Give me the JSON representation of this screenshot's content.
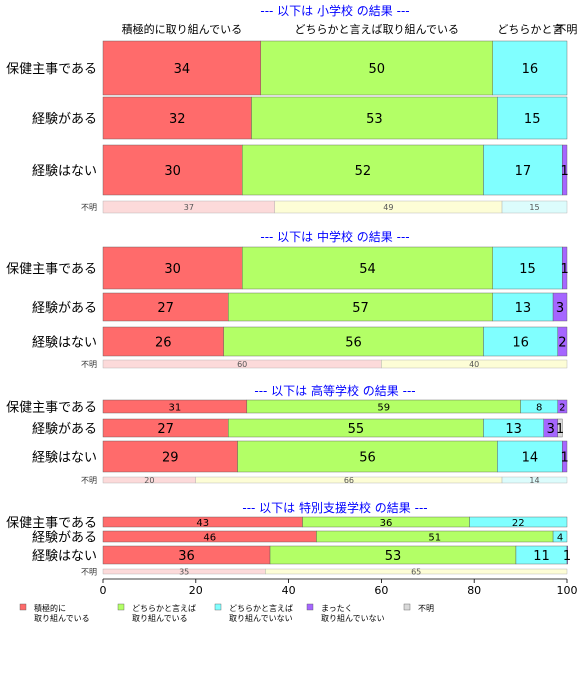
{
  "chart_data": {
    "type": "bar",
    "orientation": "horizontal-stacked",
    "colors": {
      "c1": "#ff6b6b",
      "c2": "#b3ff66",
      "c3": "#80ffff",
      "c4": "#a566ff",
      "c5": "#d9d9d9",
      "title": "#0000ff"
    },
    "top_labels": [
      "積極的に取り組んでいる",
      "どちらかと言えば取り組んでいる",
      "どちらかと言",
      "不明"
    ],
    "panels": [
      {
        "title": "--- 以下は 小学校 の結果 ---",
        "rows": [
          {
            "label": "保健主事である",
            "values": [
              34,
              50,
              16,
              0,
              0
            ]
          },
          {
            "label": "経験がある",
            "values": [
              32,
              53,
              15,
              0,
              0
            ]
          },
          {
            "label": "経験はない",
            "values": [
              30,
              52,
              17,
              1,
              0
            ]
          }
        ],
        "unknown": {
          "label": "不明",
          "values": [
            37,
            49,
            15,
            0,
            0
          ]
        }
      },
      {
        "title": "--- 以下は 中学校 の結果 ---",
        "rows": [
          {
            "label": "保健主事である",
            "values": [
              30,
              54,
              15,
              1,
              0
            ]
          },
          {
            "label": "経験がある",
            "values": [
              27,
              57,
              13,
              3,
              0
            ]
          },
          {
            "label": "経験はない",
            "values": [
              26,
              56,
              16,
              2,
              0
            ]
          }
        ],
        "unknown": {
          "label": "不明",
          "values": [
            60,
            40,
            0,
            0,
            0
          ]
        }
      },
      {
        "title": "--- 以下は 高等学校 の結果 ---",
        "rows": [
          {
            "label": "保健主事である",
            "values": [
              31,
              59,
              8,
              2,
              0
            ]
          },
          {
            "label": "経験がある",
            "values": [
              27,
              55,
              13,
              3,
              1
            ]
          },
          {
            "label": "経験はない",
            "values": [
              29,
              56,
              14,
              1,
              0
            ]
          }
        ],
        "unknown": {
          "label": "不明",
          "values": [
            20,
            66,
            14,
            0,
            0
          ]
        }
      },
      {
        "title": "--- 以下は 特別支援学校 の結果 ---",
        "rows": [
          {
            "label": "保健主事である",
            "values": [
              43,
              36,
              22,
              0,
              0
            ]
          },
          {
            "label": "経験がある",
            "values": [
              46,
              51,
              4,
              0,
              0
            ]
          },
          {
            "label": "経験はない",
            "values": [
              36,
              53,
              11,
              1,
              0
            ]
          }
        ],
        "unknown": {
          "label": "不明",
          "values": [
            35,
            65,
            0,
            0,
            0
          ]
        }
      }
    ],
    "xlim": [
      0,
      100
    ],
    "x_ticks": [
      0,
      20,
      40,
      60,
      80,
      100
    ],
    "legend": [
      {
        "line1": "積極的に",
        "line2": "取り組んでいる"
      },
      {
        "line1": "どちらかと言えば",
        "line2": "取り組んでいる"
      },
      {
        "line1": "どちらかと言えば",
        "line2": "取り組んでいない"
      },
      {
        "line1": "まったく",
        "line2": "取り組んでいない"
      },
      {
        "line1": "不明",
        "line2": ""
      }
    ],
    "legend_placement": "bottom"
  }
}
